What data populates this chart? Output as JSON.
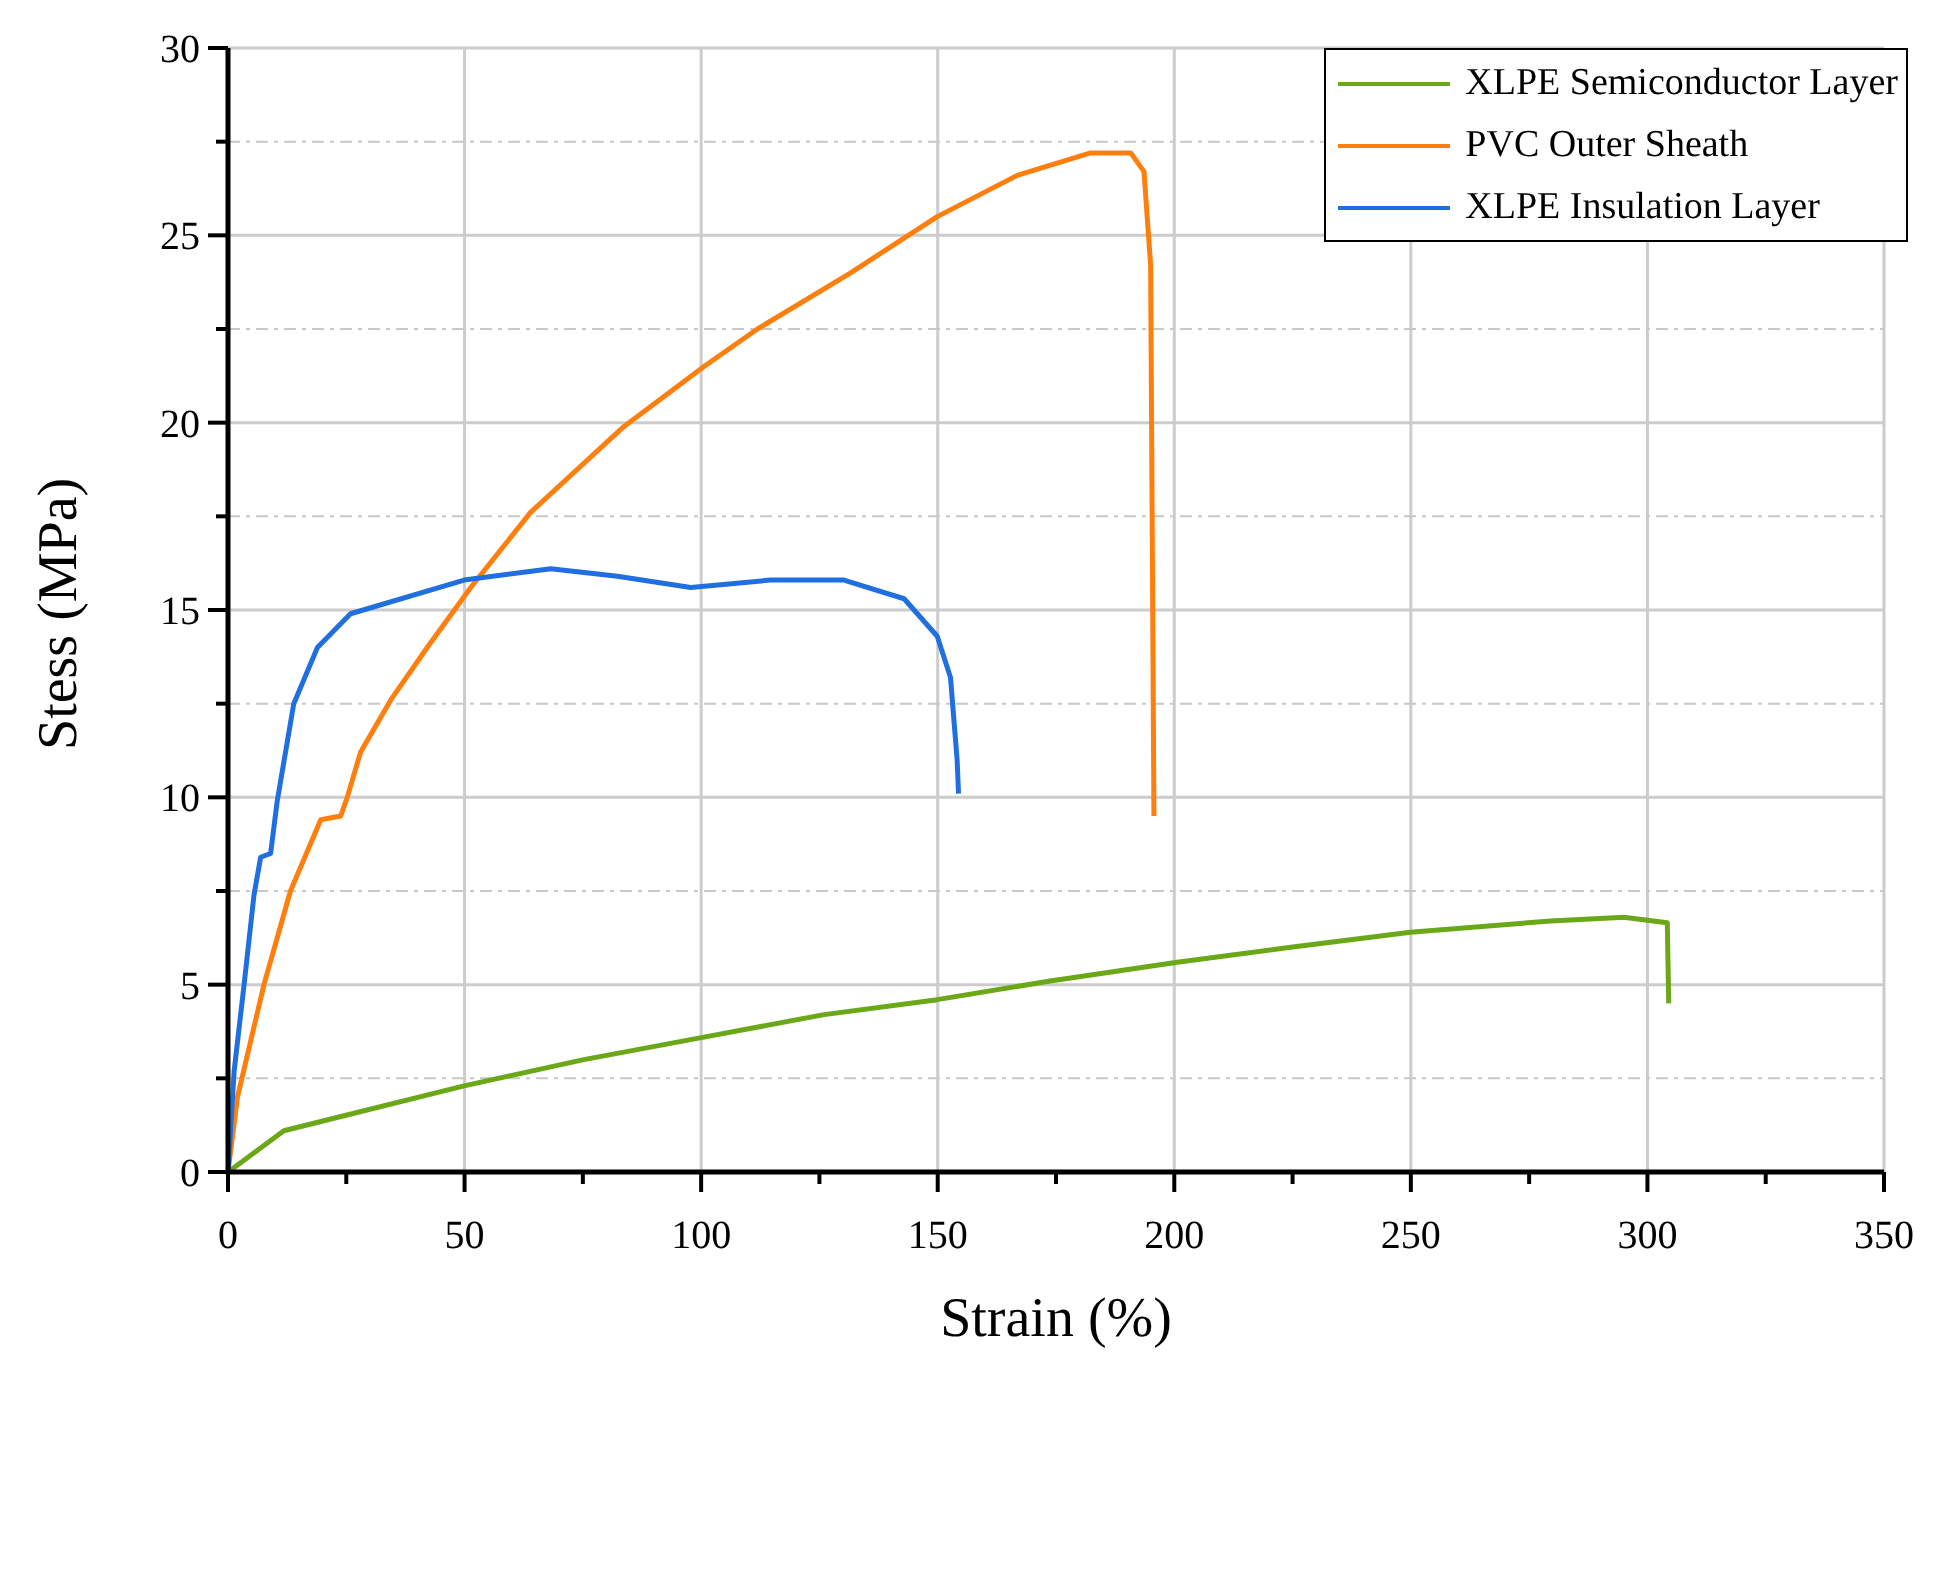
{
  "chart_data": {
    "type": "line",
    "xlabel": "Strain (%)",
    "ylabel": "Stess (MPa)",
    "xlim": [
      0,
      350
    ],
    "xticks": [
      0,
      {
        "value": 25,
        "label": null
      },
      50,
      {
        "value": 75,
        "label": null
      },
      100,
      {
        "value": 125,
        "label": null
      },
      150,
      {
        "value": 175,
        "label": null
      },
      200,
      {
        "value": 225,
        "label": null
      },
      250,
      {
        "value": 275,
        "label": null
      },
      300,
      {
        "value": 325,
        "label": null
      },
      350
    ],
    "ylim": [
      0,
      30
    ],
    "yticks": [
      0,
      {
        "value": 2.5,
        "label": null
      },
      5,
      {
        "value": 7.5,
        "label": null
      },
      10,
      {
        "value": 12.5,
        "label": null
      },
      15,
      {
        "value": 17.5,
        "label": null
      },
      20,
      {
        "value": 22.5,
        "label": null
      },
      25,
      {
        "value": 27.5,
        "label": null
      },
      30
    ],
    "grid": true,
    "legend": "top right",
    "marker": "none",
    "line_style": "solid",
    "series": [
      {
        "name": "XLPE Semiconductor Layer",
        "color": "#6aa818",
        "x": [
          0,
          11.8,
          24.5,
          49.9,
          75.2,
          100.6,
          126,
          149.9,
          173.8,
          200.6,
          224.6,
          249.9,
          279.5,
          295,
          304.2,
          304.5
        ],
        "values": [
          0,
          1.1,
          1.5,
          2.3,
          3.0,
          3.6,
          4.2,
          4.6,
          5.1,
          5.6,
          6.0,
          6.4,
          6.7,
          6.8,
          6.65,
          4.5
        ]
      },
      {
        "name": "PVC Outer Sheath",
        "color": "#ff7f0e",
        "x": [
          0,
          2.0,
          7.6,
          13.2,
          19.6,
          23.8,
          25.2,
          28.0,
          34.4,
          42.1,
          51.3,
          63.9,
          83.7,
          100.6,
          111.9,
          131.6,
          149.9,
          166.8,
          182.3,
          190.8,
          193.6,
          195.0,
          195.7
        ],
        "values": [
          0,
          2.0,
          5.0,
          7.5,
          9.4,
          9.5,
          10.0,
          11.2,
          12.6,
          14.0,
          15.6,
          17.6,
          19.9,
          21.5,
          22.5,
          24.0,
          25.5,
          26.6,
          27.2,
          27.2,
          26.7,
          24.2,
          9.5
        ]
      },
      {
        "name": "XLPE Insulation Layer",
        "color": "#1f6fe0",
        "x": [
          0,
          1.3,
          3.4,
          5.5,
          6.9,
          9.0,
          10.4,
          13.9,
          18.9,
          25.9,
          49.9,
          68.2,
          82.3,
          97.8,
          114.7,
          130.2,
          142.9,
          149.9,
          152.7,
          154.1,
          154.4
        ],
        "values": [
          0,
          2.7,
          5.0,
          7.4,
          8.4,
          8.5,
          9.9,
          12.5,
          14.0,
          14.9,
          15.8,
          16.1,
          15.9,
          15.6,
          15.8,
          15.8,
          15.3,
          14.3,
          13.2,
          11.0,
          10.1
        ]
      }
    ]
  }
}
